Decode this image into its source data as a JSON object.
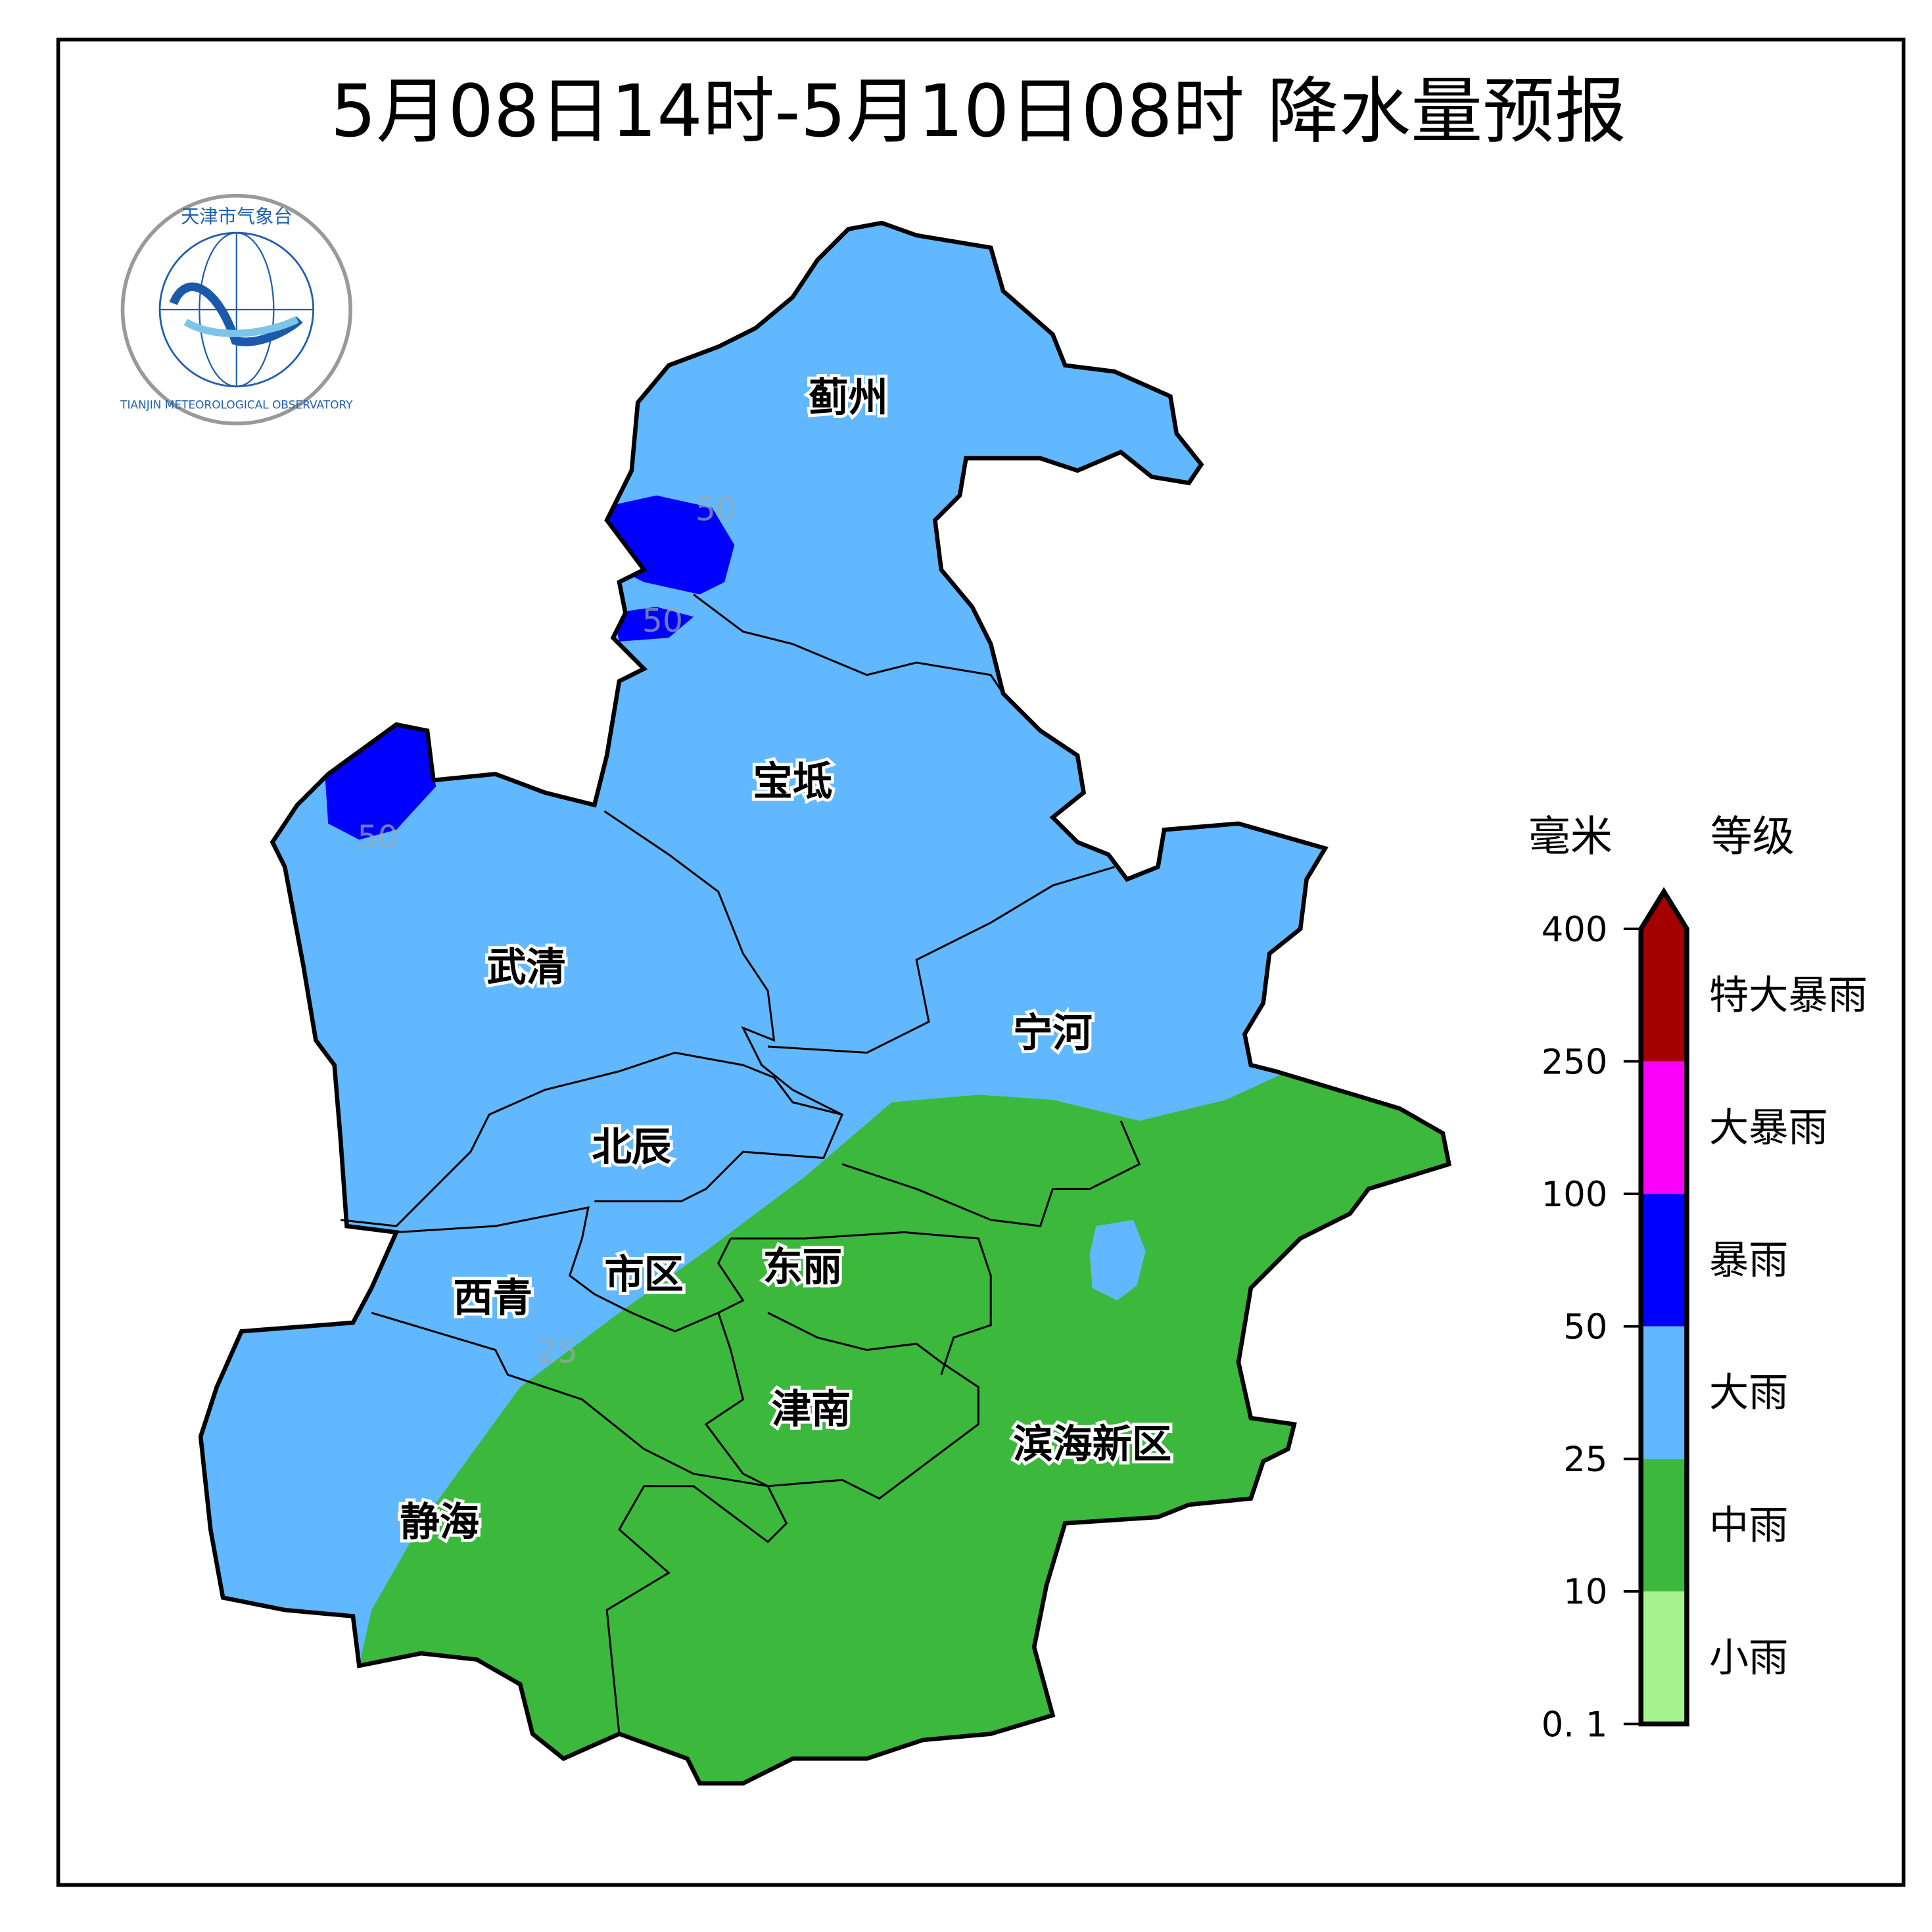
{
  "title": "5月08日14时-5月10日08时 降水量预报",
  "logo": {
    "text_cn": "天津市气象台",
    "text_en": "TIANJIN METEOROLOGICAL OBSERVATORY"
  },
  "districts": [
    "蓟州",
    "宝坻",
    "武清",
    "宁河",
    "北辰",
    "市区",
    "东丽",
    "西青",
    "津南",
    "滨海新区",
    "静海"
  ],
  "contour_labels": [
    "50",
    "50",
    "50",
    "25"
  ],
  "legend": {
    "unit_header": "毫米",
    "level_header": "等级",
    "ticks": [
      "400",
      "250",
      "100",
      "50",
      "25",
      "10",
      "0. 1"
    ],
    "levels": [
      {
        "name": "特大暴雨",
        "color": "#a50000"
      },
      {
        "name": "大暴雨",
        "color": "#fa00fa"
      },
      {
        "name": "暴雨",
        "color": "#0000fe"
      },
      {
        "name": "大雨",
        "color": "#61b8ff"
      },
      {
        "name": "中雨",
        "color": "#3cb93d"
      },
      {
        "name": "小雨",
        "color": "#a6f28e"
      }
    ]
  },
  "map_colors": {
    "heavy_rain": "#61b8ff",
    "moderate_rain": "#3cb93d",
    "rainstorm": "#0000fe"
  }
}
